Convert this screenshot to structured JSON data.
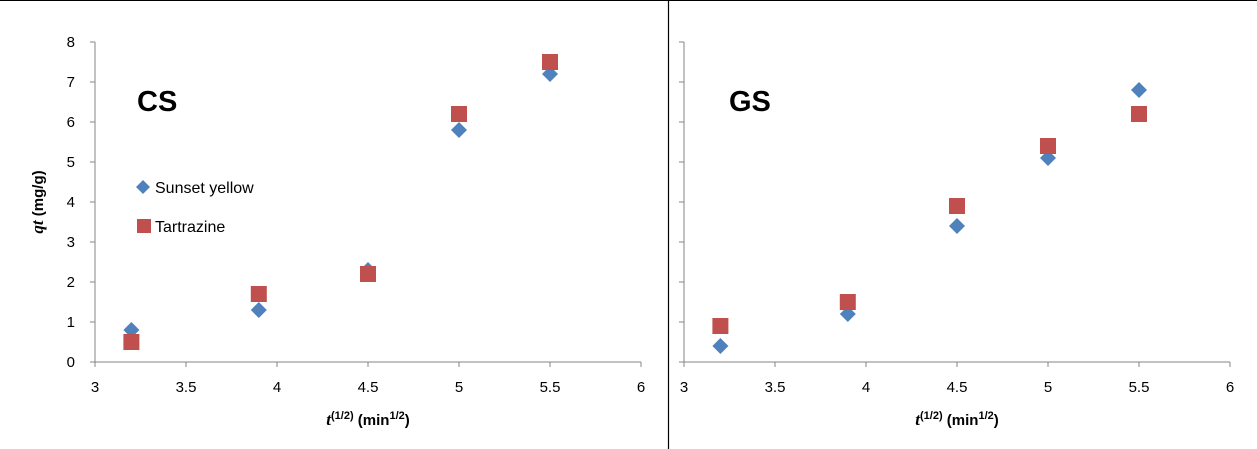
{
  "chart_data": [
    {
      "type": "scatter",
      "title": "CS",
      "xlabel": "t",
      "xlabel_sup": "(1/2)",
      "xlabel_unit": " (min",
      "xlabel_unit_sup": "1/2",
      "xlabel_close": ")",
      "ylabel": "qt",
      "ylabel_unit": " (mg/g)",
      "xlim": [
        3,
        6
      ],
      "ylim": [
        0,
        8
      ],
      "xticks": [
        "3",
        "3.5",
        "4",
        "4.5",
        "5",
        "5.5",
        "6"
      ],
      "yticks": [
        "0",
        "1",
        "2",
        "3",
        "4",
        "5",
        "6",
        "7",
        "8"
      ],
      "grid": false,
      "legend": "left",
      "series": [
        {
          "name": "Sunset yellow",
          "marker": "diamond",
          "color": "#4F81BD",
          "x": [
            3.2,
            3.9,
            4.5,
            5.0,
            5.5
          ],
          "y": [
            0.8,
            1.3,
            2.3,
            5.8,
            7.2
          ]
        },
        {
          "name": "Tartrazine",
          "marker": "square",
          "color": "#C0504D",
          "x": [
            3.2,
            3.9,
            4.5,
            5.0,
            5.5
          ],
          "y": [
            0.5,
            1.7,
            2.2,
            6.2,
            7.5
          ]
        }
      ]
    },
    {
      "type": "scatter",
      "title": "GS",
      "xlabel": "t",
      "xlabel_sup": "(1/2)",
      "xlabel_unit": " (min",
      "xlabel_unit_sup": "1/2",
      "xlabel_close": ")",
      "ylabel": "",
      "xlim": [
        3,
        6
      ],
      "ylim": [
        0,
        8
      ],
      "xticks": [
        "3",
        "3.5",
        "4",
        "4.5",
        "5",
        "5.5",
        "6"
      ],
      "yticks": [],
      "grid": false,
      "legend": "none",
      "series": [
        {
          "marker": "diamond",
          "color": "#4F81BD",
          "x": [
            3.2,
            3.9,
            4.5,
            5.0,
            5.5
          ],
          "y": [
            0.4,
            1.2,
            3.4,
            5.1,
            6.8
          ]
        },
        {
          "marker": "square",
          "color": "#C0504D",
          "x": [
            3.2,
            3.9,
            4.5,
            5.0,
            5.5
          ],
          "y": [
            0.9,
            1.5,
            3.9,
            5.4,
            6.2
          ]
        }
      ]
    }
  ]
}
